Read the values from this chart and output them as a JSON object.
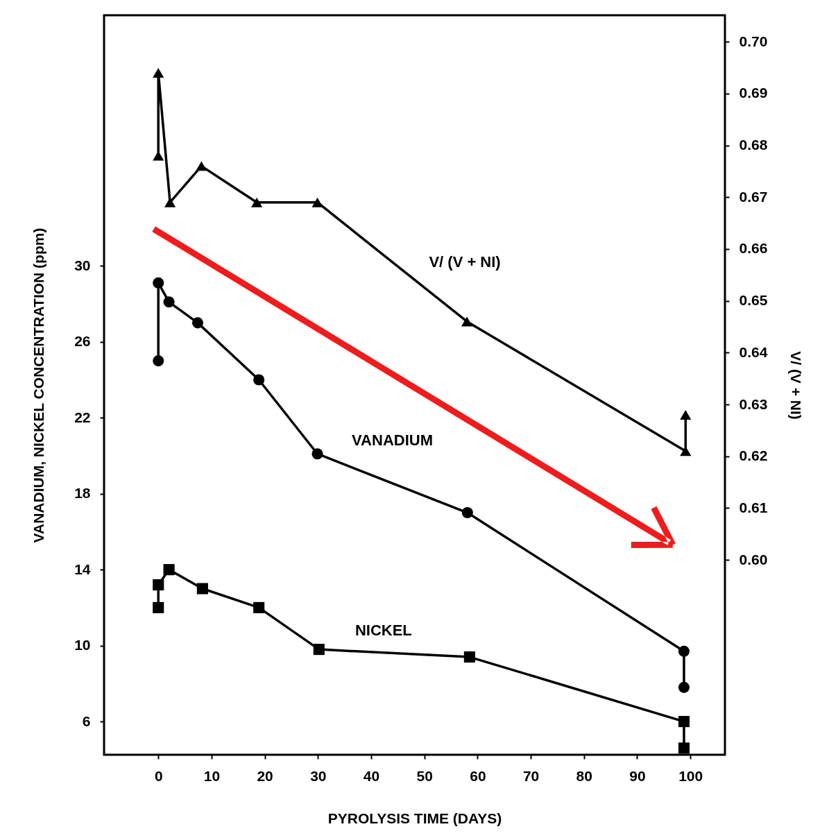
{
  "chart_data": {
    "type": "line",
    "xlabel": "PYROLYSIS TIME (DAYS)",
    "ylabel": "VANADIUM, NICKEL CONCENTRATION (ppm)",
    "y2label": "V/ (V + NI)",
    "xlim": [
      -10.2,
      106.5
    ],
    "xticks": [
      0,
      10,
      20,
      30,
      40,
      50,
      60,
      70,
      80,
      90,
      100
    ],
    "ylim": [
      4.25,
      43.2
    ],
    "yticks": [
      6,
      10,
      14,
      18,
      22,
      26,
      30
    ],
    "y2lim": [
      0.5624,
      0.7051
    ],
    "y2ticks": [
      {
        "value": 0.6,
        "label": "0.60"
      },
      0.61,
      0.62,
      0.63,
      0.64,
      0.65,
      0.66,
      0.67,
      0.68,
      0.69,
      {
        "value": 0.7,
        "label": "0.70"
      }
    ],
    "line_style": "solid",
    "series": [
      {
        "name": "V/ (V + NI)",
        "color": "#000000",
        "marker": "triangle",
        "axis": "y2",
        "x": [
          0,
          0,
          2.2,
          8.1,
          18.5,
          29.9,
          58,
          99.1,
          99.1
        ],
        "values": [
          0.678,
          0.694,
          0.669,
          0.676,
          0.669,
          0.669,
          0.646,
          0.621,
          0.628
        ]
      },
      {
        "name": "VANADIUM",
        "color": "#000000",
        "marker": "circle",
        "x": [
          0,
          0,
          2,
          7.4,
          18.9,
          29.9,
          58.1,
          98.8,
          98.8
        ],
        "values": [
          25.0,
          29.1,
          28.1,
          27.0,
          24.0,
          20.1,
          17.0,
          9.7,
          7.8
        ]
      },
      {
        "name": "NICKEL",
        "color": "#000000",
        "marker": "square",
        "x": [
          0,
          0,
          2,
          8.3,
          18.9,
          30.2,
          58.5,
          98.8,
          98.8
        ],
        "values": [
          12.0,
          13.2,
          14.0,
          13.0,
          12.0,
          9.8,
          9.4,
          6.0,
          4.6
        ]
      }
    ]
  }
}
